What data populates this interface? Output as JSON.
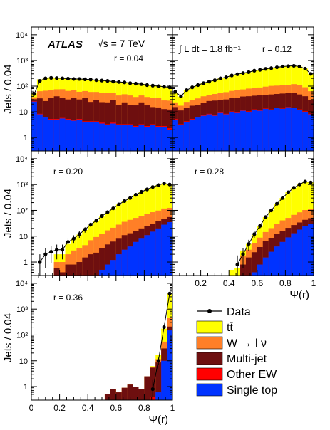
{
  "page": {
    "experiment": "ATLAS",
    "energy_label": "√s = 7 TeV",
    "lumi_label": "∫ L dt = 1.8 fb⁻¹"
  },
  "colors": {
    "ttbar": "#ffff00",
    "wlnu": "#ff7f27",
    "multijet": "#6e0f0f",
    "otherEW": "#ff0000",
    "singletop": "#0033ff",
    "data": "#000000"
  },
  "legend": {
    "entries": [
      {
        "key": "data",
        "label": "Data"
      },
      {
        "key": "ttbar",
        "label": "tt̄"
      },
      {
        "key": "wlnu",
        "label": "W → l ν"
      },
      {
        "key": "multijet",
        "label": "Multi-jet"
      },
      {
        "key": "otherEW",
        "label": "Other EW"
      },
      {
        "key": "singletop",
        "label": "Single top"
      }
    ]
  },
  "chart_data": [
    {
      "type": "area",
      "panel": "r=0.04",
      "annotation": "r = 0.04",
      "ylabel": "Jets / 0.04",
      "ylim": [
        0.3,
        20000
      ],
      "yscale": "log",
      "xlim": [
        0,
        1
      ],
      "ytick_labels": [
        "1",
        "10",
        "10²",
        "10³",
        "10⁴"
      ],
      "x": [
        0.02,
        0.06,
        0.1,
        0.14,
        0.18,
        0.22,
        0.26,
        0.3,
        0.34,
        0.38,
        0.42,
        0.46,
        0.5,
        0.54,
        0.58,
        0.62,
        0.66,
        0.7,
        0.74,
        0.78,
        0.82,
        0.86,
        0.9,
        0.94,
        0.98
      ],
      "data_y": [
        50,
        160,
        200,
        210,
        205,
        200,
        195,
        190,
        190,
        185,
        180,
        170,
        165,
        160,
        150,
        145,
        140,
        130,
        125,
        120,
        110,
        105,
        100,
        95,
        90
      ],
      "series": [
        {
          "name": "Single top",
          "values": [
            25,
            8,
            6,
            5,
            5,
            5.5,
            5,
            4.5,
            5,
            4,
            4,
            4,
            3.5,
            3,
            3.5,
            3,
            3,
            3,
            2.5,
            3,
            2.5,
            3,
            2.5,
            2.5,
            2
          ]
        },
        {
          "name": "Other EW",
          "values": [
            1,
            0.4,
            0.3,
            0.3,
            0.3,
            0.3,
            0.3,
            0.3,
            0.3,
            0.3,
            0.3,
            0.3,
            0.3,
            0.3,
            0.3,
            0.3,
            0.3,
            0.3,
            0.3,
            0.3,
            0.3,
            0.3,
            0.3,
            0.3,
            0.3
          ]
        },
        {
          "name": "Multi-jet",
          "values": [
            5,
            25,
            20,
            30,
            35,
            30,
            25,
            30,
            25,
            30,
            20,
            25,
            20,
            20,
            25,
            15,
            20,
            15,
            15,
            20,
            15,
            12,
            12,
            10,
            10
          ]
        },
        {
          "name": "W → l ν",
          "values": [
            6,
            30,
            40,
            35,
            35,
            40,
            35,
            35,
            30,
            30,
            35,
            30,
            30,
            30,
            25,
            25,
            25,
            25,
            20,
            20,
            20,
            20,
            20,
            15,
            15
          ]
        },
        {
          "name": "tt̄",
          "values": [
            15,
            120,
            140,
            150,
            140,
            135,
            130,
            125,
            130,
            120,
            120,
            110,
            110,
            105,
            100,
            100,
            95,
            90,
            85,
            80,
            75,
            70,
            70,
            65,
            60
          ]
        }
      ]
    },
    {
      "type": "area",
      "panel": "r=0.12",
      "annotation": "r = 0.12",
      "ylabel": "",
      "ylim": [
        0.3,
        20000
      ],
      "yscale": "log",
      "xlim": [
        0,
        1
      ],
      "x": [
        0.02,
        0.06,
        0.1,
        0.14,
        0.18,
        0.22,
        0.26,
        0.3,
        0.34,
        0.38,
        0.42,
        0.46,
        0.5,
        0.54,
        0.58,
        0.62,
        0.66,
        0.7,
        0.74,
        0.78,
        0.82,
        0.86,
        0.9,
        0.94,
        0.98
      ],
      "data_y": [
        60,
        40,
        70,
        90,
        110,
        130,
        150,
        170,
        200,
        220,
        260,
        290,
        320,
        350,
        400,
        430,
        470,
        500,
        540,
        580,
        600,
        620,
        580,
        480,
        300
      ],
      "series": [
        {
          "name": "Single top",
          "values": [
            5,
            3,
            4,
            5,
            6,
            7,
            8,
            7,
            9,
            8,
            10,
            9,
            11,
            10,
            12,
            11,
            13,
            12,
            14,
            13,
            15,
            14,
            12,
            10,
            8
          ]
        },
        {
          "name": "Other EW",
          "values": [
            0.3,
            0.3,
            0.3,
            0.3,
            0.3,
            0.3,
            0.4,
            0.4,
            0.4,
            0.4,
            0.4,
            0.5,
            0.5,
            0.5,
            0.5,
            0.5,
            0.5,
            0.5,
            0.5,
            0.5,
            0.5,
            0.5,
            0.5,
            0.5,
            0.4
          ]
        },
        {
          "name": "Multi-jet",
          "values": [
            10,
            8,
            10,
            12,
            12,
            15,
            18,
            20,
            20,
            22,
            25,
            25,
            28,
            30,
            30,
            32,
            32,
            35,
            35,
            38,
            38,
            40,
            35,
            30,
            20
          ]
        },
        {
          "name": "W → l ν",
          "values": [
            8,
            6,
            10,
            12,
            15,
            18,
            20,
            22,
            25,
            28,
            30,
            35,
            35,
            40,
            45,
            45,
            50,
            55,
            55,
            60,
            60,
            65,
            60,
            50,
            35
          ]
        },
        {
          "name": "tt̄",
          "values": [
            30,
            22,
            45,
            60,
            75,
            90,
            105,
            120,
            145,
            160,
            195,
            220,
            245,
            270,
            310,
            340,
            375,
            395,
            435,
            470,
            485,
            500,
            470,
            390,
            235
          ]
        }
      ]
    },
    {
      "type": "area",
      "panel": "r=0.20",
      "annotation": "r = 0.20",
      "ylabel": "Jets / 0.04",
      "ylim": [
        0.3,
        20000
      ],
      "yscale": "log",
      "xlim": [
        0,
        1
      ],
      "ytick_labels": [
        "1",
        "10",
        "10²",
        "10³",
        "10⁴"
      ],
      "x": [
        0.02,
        0.06,
        0.1,
        0.14,
        0.18,
        0.22,
        0.26,
        0.3,
        0.34,
        0.38,
        0.42,
        0.46,
        0.5,
        0.54,
        0.58,
        0.62,
        0.66,
        0.7,
        0.74,
        0.78,
        0.82,
        0.86,
        0.9,
        0.94,
        0.98
      ],
      "data_y": [
        null,
        1,
        2,
        2.5,
        3,
        3,
        6,
        8,
        12,
        18,
        28,
        40,
        60,
        85,
        120,
        170,
        230,
        300,
        400,
        520,
        650,
        800,
        950,
        1100,
        1000
      ],
      "series": [
        {
          "name": "Single top",
          "values": [
            0,
            0,
            0,
            0,
            0,
            0,
            0,
            0,
            0,
            0,
            0,
            0.3,
            0.5,
            0.8,
            1.2,
            2,
            3,
            4,
            6,
            8,
            11,
            15,
            20,
            28,
            35
          ]
        },
        {
          "name": "Other EW",
          "values": [
            0,
            0,
            0,
            0,
            0,
            0,
            0,
            0,
            0,
            0,
            0,
            0,
            0,
            0,
            0,
            0,
            0,
            0,
            0,
            0,
            0,
            0,
            0,
            0,
            0
          ]
        },
        {
          "name": "Multi-jet",
          "values": [
            0,
            0,
            0,
            0,
            0.6,
            0.4,
            0.8,
            0.8,
            1,
            1.5,
            2,
            2,
            3,
            4,
            5,
            6,
            8,
            9,
            10,
            12,
            14,
            15,
            18,
            20,
            20
          ]
        },
        {
          "name": "W → l ν",
          "values": [
            0,
            0,
            0,
            0,
            0.4,
            0.6,
            1.2,
            2,
            2.5,
            3,
            5,
            7,
            9,
            12,
            15,
            20,
            25,
            30,
            35,
            40,
            50,
            55,
            60,
            70,
            70
          ]
        },
        {
          "name": "tt̄",
          "values": [
            0,
            0,
            0,
            0,
            1,
            1,
            3,
            5,
            8,
            13,
            20,
            30,
            45,
            65,
            95,
            140,
            190,
            255,
            345,
            460,
            575,
            715,
            850,
            980,
            875
          ]
        }
      ]
    },
    {
      "type": "area",
      "panel": "r=0.28",
      "annotation": "r = 0.28",
      "ylabel": "",
      "ylim": [
        0.3,
        20000
      ],
      "yscale": "log",
      "xlim": [
        0,
        1
      ],
      "x": [
        0.02,
        0.06,
        0.1,
        0.14,
        0.18,
        0.22,
        0.26,
        0.3,
        0.34,
        0.38,
        0.42,
        0.46,
        0.5,
        0.54,
        0.58,
        0.62,
        0.66,
        0.7,
        0.74,
        0.78,
        0.82,
        0.86,
        0.9,
        0.94,
        0.98
      ],
      "data_y": [
        null,
        null,
        null,
        null,
        null,
        null,
        null,
        null,
        null,
        null,
        null,
        0.8,
        2,
        5,
        12,
        25,
        55,
        100,
        180,
        300,
        500,
        750,
        1000,
        1300,
        1200
      ],
      "series": [
        {
          "name": "Single top",
          "values": [
            0,
            0,
            0,
            0,
            0,
            0,
            0,
            0,
            0,
            0,
            0,
            0,
            0,
            0,
            0.4,
            0.8,
            1.5,
            2.5,
            4,
            6,
            9,
            13,
            18,
            25,
            30
          ]
        },
        {
          "name": "Other EW",
          "values": [
            0,
            0,
            0,
            0,
            0,
            0,
            0,
            0,
            0,
            0,
            0,
            0,
            0,
            0,
            0,
            0,
            0,
            0,
            0,
            0,
            0,
            0,
            0,
            0,
            0
          ]
        },
        {
          "name": "Multi-jet",
          "values": [
            0,
            0,
            0,
            0,
            0,
            0,
            0,
            0,
            0,
            0,
            0,
            0,
            0.8,
            1.5,
            2,
            3,
            5,
            6,
            8,
            10,
            12,
            14,
            16,
            18,
            20
          ]
        },
        {
          "name": "W → l ν",
          "values": [
            0,
            0,
            0,
            0,
            0,
            0,
            0,
            0,
            0,
            0,
            0,
            0,
            1,
            1.5,
            3,
            5,
            8,
            12,
            18,
            25,
            30,
            40,
            50,
            60,
            60
          ]
        },
        {
          "name": "tt̄",
          "values": [
            0,
            0,
            0,
            0,
            0,
            0,
            0,
            0,
            0,
            0,
            0.5,
            0.6,
            1,
            2,
            6,
            15,
            40,
            80,
            150,
            260,
            450,
            680,
            920,
            1200,
            1100
          ]
        }
      ]
    },
    {
      "type": "area",
      "panel": "r=0.36",
      "annotation": "r = 0.36",
      "ylabel": "Jets / 0.04",
      "xlabel": "Ψ(r)",
      "ylim": [
        0.3,
        20000
      ],
      "yscale": "log",
      "xlim": [
        0,
        1
      ],
      "ytick_labels": [
        "1",
        "10",
        "10²",
        "10³",
        "10⁴"
      ],
      "xtick_labels": [
        "0",
        "0.2",
        "0.4",
        "0.6",
        "0.8",
        "1"
      ],
      "x": [
        0.02,
        0.06,
        0.1,
        0.14,
        0.18,
        0.22,
        0.26,
        0.3,
        0.34,
        0.38,
        0.42,
        0.46,
        0.5,
        0.54,
        0.58,
        0.62,
        0.66,
        0.7,
        0.74,
        0.78,
        0.82,
        0.86,
        0.9,
        0.94,
        0.98
      ],
      "data_y": [
        null,
        null,
        null,
        null,
        null,
        null,
        null,
        null,
        null,
        null,
        null,
        null,
        null,
        null,
        null,
        null,
        null,
        null,
        null,
        null,
        null,
        0.8,
        10,
        200,
        4000
      ],
      "series": [
        {
          "name": "Single top",
          "values": [
            0,
            0,
            0,
            0,
            0,
            0,
            0,
            0,
            0,
            0,
            0,
            0,
            0,
            0,
            0,
            0,
            0,
            0,
            0,
            0,
            0,
            0,
            0.6,
            10,
            150
          ]
        },
        {
          "name": "Other EW",
          "values": [
            0,
            0,
            0,
            0,
            0,
            0,
            0,
            0,
            0,
            0,
            0,
            0,
            0,
            0,
            0,
            0,
            0,
            0,
            0,
            0,
            0,
            0.4,
            0,
            0,
            0
          ]
        },
        {
          "name": "Multi-jet",
          "values": [
            0,
            0,
            0,
            0,
            0,
            0,
            0,
            0,
            0,
            0,
            0,
            0,
            0,
            0.5,
            0.8,
            0.6,
            0.9,
            1.2,
            1,
            0.8,
            2.5,
            5,
            8,
            20,
            60
          ]
        },
        {
          "name": "W → l ν",
          "values": [
            0,
            0,
            0,
            0,
            0,
            0,
            0,
            0,
            0,
            0,
            0,
            0,
            0,
            0,
            0,
            0,
            0,
            0,
            0,
            0,
            0,
            0.5,
            3,
            25,
            250
          ]
        },
        {
          "name": "tt̄",
          "values": [
            0,
            0,
            0,
            0,
            0,
            0,
            0,
            0,
            0,
            0,
            0,
            0,
            0,
            0,
            0,
            0,
            0,
            0,
            0,
            0,
            0,
            0.3,
            5,
            120,
            3500
          ]
        }
      ]
    }
  ]
}
